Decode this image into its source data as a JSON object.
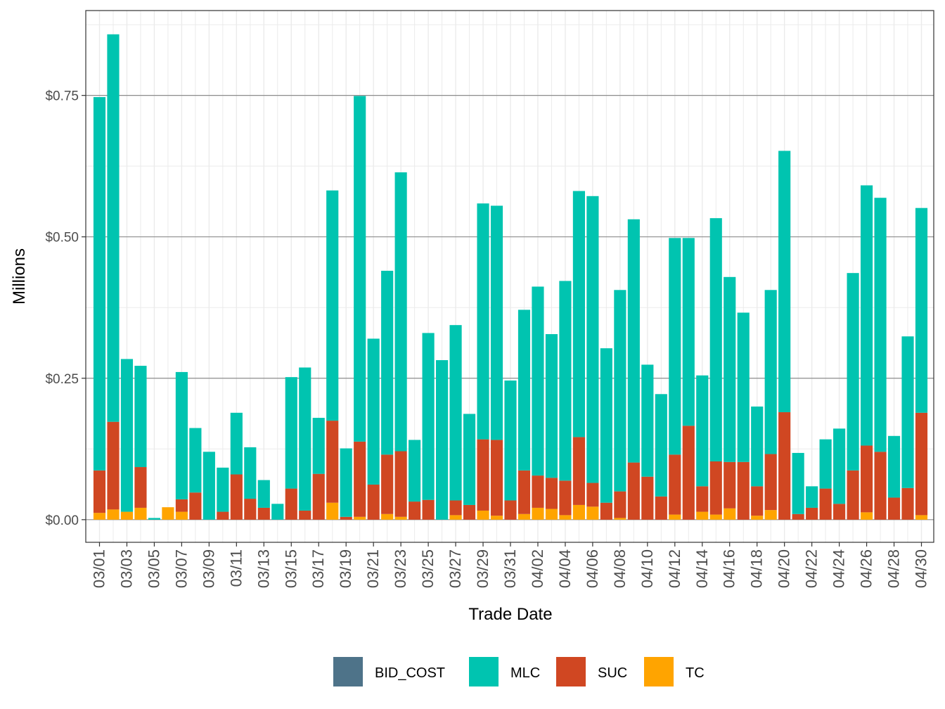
{
  "colors": {
    "BID_COST": "#4e7389",
    "MLC": "#00c4b0",
    "SUC": "#d04722",
    "TC": "#ffa400"
  },
  "chart_data": {
    "type": "bar",
    "stacked": true,
    "xlabel": "Trade Date",
    "ylabel": "Millions",
    "ylim": [
      -0.04,
      0.9
    ],
    "yticks": [
      0,
      0.25,
      0.5,
      0.75
    ],
    "ytick_labels": [
      "$0.00",
      "$0.25",
      "$0.50",
      "$0.75"
    ],
    "grid": true,
    "legend_position": "bottom",
    "legend": [
      "BID_COST",
      "MLC",
      "SUC",
      "TC"
    ],
    "categories": [
      "03/01",
      "03/02",
      "03/03",
      "03/04",
      "03/05",
      "03/06",
      "03/07",
      "03/08",
      "03/09",
      "03/10",
      "03/11",
      "03/12",
      "03/13",
      "03/14",
      "03/15",
      "03/16",
      "03/17",
      "03/18",
      "03/19",
      "03/20",
      "03/21",
      "03/22",
      "03/23",
      "03/24",
      "03/25",
      "03/26",
      "03/27",
      "03/28",
      "03/29",
      "03/30",
      "03/31",
      "04/01",
      "04/02",
      "04/03",
      "04/04",
      "04/05",
      "04/06",
      "04/07",
      "04/08",
      "04/09",
      "04/10",
      "04/11",
      "04/12",
      "04/13",
      "04/14",
      "04/15",
      "04/16",
      "04/17",
      "04/18",
      "04/19",
      "04/20",
      "04/21",
      "04/22",
      "04/23",
      "04/24",
      "04/25",
      "04/26",
      "04/27",
      "04/28",
      "04/29",
      "04/30"
    ],
    "tick_labels": [
      "03/01",
      "03/03",
      "03/05",
      "03/07",
      "03/09",
      "03/11",
      "03/13",
      "03/15",
      "03/17",
      "03/19",
      "03/21",
      "03/23",
      "03/25",
      "03/27",
      "03/29",
      "03/31",
      "04/02",
      "04/04",
      "04/06",
      "04/08",
      "04/10",
      "04/12",
      "04/14",
      "04/16",
      "04/18",
      "04/20",
      "04/22",
      "04/24",
      "04/26",
      "04/28",
      "04/30"
    ],
    "series": [
      {
        "name": "BID_COST",
        "values": [
          0,
          0,
          0,
          0,
          0,
          0,
          0,
          0,
          0,
          0,
          0,
          0,
          0,
          0,
          0,
          0,
          0,
          0,
          0,
          0,
          0,
          0,
          0,
          0,
          0,
          0,
          0,
          0,
          0,
          0,
          0,
          0,
          0,
          0,
          0,
          0,
          0,
          0,
          0,
          0,
          0,
          0,
          0,
          0,
          0,
          0,
          0,
          0,
          0,
          0,
          0,
          0,
          0,
          0,
          0,
          0,
          0,
          0,
          0,
          0,
          0
        ]
      },
      {
        "name": "TC",
        "values": [
          0.012,
          0.018,
          0.014,
          0.021,
          0.0,
          0.022,
          0.014,
          0.0,
          0.0,
          0.0,
          0.0,
          0.0,
          0.0,
          0.0,
          0.0,
          0.0,
          0.0,
          0.03,
          0.0,
          0.005,
          0.0,
          0.01,
          0.005,
          0.0,
          0.0,
          0.0,
          0.008,
          0.0,
          0.016,
          0.007,
          0.0,
          0.01,
          0.021,
          0.019,
          0.008,
          0.026,
          0.023,
          0.0,
          0.003,
          0.0,
          0.0,
          0.0,
          0.009,
          0.0,
          0.014,
          0.009,
          0.02,
          0.0,
          0.007,
          0.017,
          0.0,
          0.0,
          0.0,
          0.0,
          0.0,
          0.0,
          0.013,
          0.0,
          0.0,
          0.0,
          0.008
        ]
      },
      {
        "name": "SUC",
        "values": [
          0.075,
          0.155,
          0.0,
          0.072,
          0.0,
          0.0,
          0.022,
          0.048,
          0.0,
          0.014,
          0.08,
          0.037,
          0.021,
          0.0,
          0.055,
          0.016,
          0.081,
          0.145,
          0.005,
          0.133,
          0.062,
          0.105,
          0.116,
          0.032,
          0.035,
          0.0,
          0.026,
          0.026,
          0.126,
          0.134,
          0.034,
          0.077,
          0.057,
          0.055,
          0.061,
          0.12,
          0.042,
          0.03,
          0.047,
          0.101,
          0.076,
          0.041,
          0.106,
          0.166,
          0.045,
          0.094,
          0.082,
          0.102,
          0.052,
          0.099,
          0.19,
          0.01,
          0.021,
          0.055,
          0.028,
          0.087,
          0.118,
          0.12,
          0.039,
          0.056,
          0.181
        ]
      },
      {
        "name": "MLC",
        "values": [
          0.66,
          0.685,
          0.27,
          0.179,
          0.003,
          0.0,
          0.225,
          0.114,
          0.12,
          0.078,
          0.109,
          0.091,
          0.049,
          0.028,
          0.197,
          0.253,
          0.099,
          0.407,
          0.121,
          0.611,
          0.258,
          0.325,
          0.493,
          0.109,
          0.295,
          0.282,
          0.31,
          0.161,
          0.417,
          0.414,
          0.212,
          0.284,
          0.334,
          0.254,
          0.353,
          0.435,
          0.507,
          0.273,
          0.356,
          0.43,
          0.198,
          0.181,
          0.383,
          0.332,
          0.196,
          0.43,
          0.327,
          0.264,
          0.141,
          0.29,
          0.462,
          0.108,
          0.038,
          0.087,
          0.133,
          0.349,
          0.46,
          0.449,
          0.109,
          0.268,
          0.362
        ]
      }
    ]
  }
}
